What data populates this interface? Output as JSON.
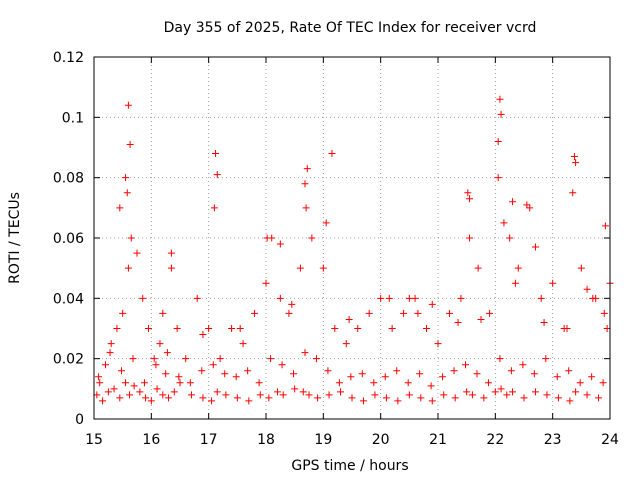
{
  "chart_data": {
    "type": "scatter",
    "title": "Day 355 of 2025, Rate Of TEC Index for receiver vcrd",
    "xlabel": "GPS time / hours",
    "ylabel": "ROTI / TECUs",
    "xlim": [
      15,
      24
    ],
    "ylim": [
      0,
      0.12
    ],
    "xticks": [
      "15",
      "16",
      "17",
      "18",
      "19",
      "20",
      "21",
      "22",
      "23",
      "24"
    ],
    "yticks": [
      "0",
      "0.02",
      "0.04",
      "0.06",
      "0.08",
      "0.1",
      "0.12"
    ],
    "grid": true,
    "marker": "plus",
    "color": "#ff0000",
    "series": [
      {
        "x": [
          15.05,
          15.1,
          15.15,
          15.2,
          15.25,
          15.3,
          15.35,
          15.4,
          15.45,
          15.5,
          15.55,
          15.6,
          15.62,
          15.65,
          15.7,
          15.75,
          15.8,
          15.85,
          15.9,
          15.95,
          16.0,
          16.05,
          16.1,
          16.15,
          16.2,
          16.25,
          16.3,
          16.35,
          16.4,
          16.45,
          16.5,
          16.6,
          16.7,
          16.8,
          16.9,
          17.0,
          17.05,
          17.1,
          17.15,
          17.2,
          17.3,
          17.4,
          17.5,
          17.6,
          17.7,
          17.8,
          17.9,
          18.0,
          18.05,
          18.1,
          18.2,
          18.25,
          18.3,
          18.4,
          18.5,
          18.6,
          18.65,
          18.7,
          18.75,
          18.8,
          18.9,
          19.0,
          19.1,
          19.2,
          19.3,
          19.4,
          19.5,
          19.6,
          19.7,
          19.8,
          19.9,
          20.0,
          20.1,
          20.2,
          20.3,
          20.4,
          20.5,
          20.6,
          20.7,
          20.8,
          20.9,
          21.0,
          21.1,
          21.2,
          21.3,
          21.4,
          21.5,
          21.55,
          21.6,
          21.7,
          21.8,
          21.9,
          22.0,
          22.05,
          22.1,
          22.15,
          22.2,
          22.25,
          22.3,
          22.4,
          22.5,
          22.6,
          22.7,
          22.8,
          22.9,
          23.0,
          23.1,
          23.2,
          23.3,
          23.35,
          23.4,
          23.5,
          23.6,
          23.7,
          23.8,
          23.9,
          23.95,
          24.0,
          15.08,
          15.28,
          15.48,
          15.68,
          15.88,
          16.08,
          16.28,
          16.48,
          16.68,
          16.88,
          17.08,
          17.28,
          17.48,
          17.68,
          17.88,
          18.08,
          18.28,
          18.48,
          18.68,
          18.88,
          19.08,
          19.28,
          19.48,
          19.68,
          19.88,
          20.08,
          20.28,
          20.48,
          20.68,
          20.88,
          21.08,
          21.28,
          21.48,
          21.68,
          21.88,
          22.08,
          22.28,
          22.48,
          22.68,
          22.88,
          23.08,
          23.28,
          23.48,
          23.68,
          23.88,
          15.6,
          15.63,
          15.58,
          17.12,
          17.15,
          18.72,
          18.68,
          19.15,
          22.08,
          22.1,
          22.05,
          22.3,
          22.55,
          23.38,
          23.4,
          21.52,
          21.55,
          16.35,
          18.02,
          18.25,
          19.05,
          20.5,
          20.9,
          22.7,
          23.6,
          23.92,
          15.55,
          15.45,
          16.2,
          16.9,
          17.55,
          18.45,
          19.45,
          20.15,
          20.65,
          21.35,
          21.75,
          22.35,
          22.85,
          23.25,
          23.75
        ],
        "y": [
          0.008,
          0.012,
          0.006,
          0.018,
          0.009,
          0.025,
          0.01,
          0.03,
          0.007,
          0.035,
          0.012,
          0.05,
          0.008,
          0.06,
          0.011,
          0.055,
          0.009,
          0.04,
          0.007,
          0.03,
          0.006,
          0.02,
          0.01,
          0.025,
          0.008,
          0.015,
          0.007,
          0.05,
          0.009,
          0.03,
          0.012,
          0.02,
          0.008,
          0.04,
          0.007,
          0.03,
          0.006,
          0.07,
          0.009,
          0.02,
          0.008,
          0.03,
          0.007,
          0.025,
          0.006,
          0.035,
          0.008,
          0.045,
          0.007,
          0.06,
          0.009,
          0.04,
          0.008,
          0.035,
          0.01,
          0.05,
          0.009,
          0.07,
          0.008,
          0.06,
          0.007,
          0.05,
          0.008,
          0.03,
          0.009,
          0.025,
          0.007,
          0.03,
          0.006,
          0.035,
          0.008,
          0.04,
          0.007,
          0.03,
          0.006,
          0.035,
          0.008,
          0.04,
          0.007,
          0.03,
          0.006,
          0.025,
          0.008,
          0.035,
          0.007,
          0.04,
          0.009,
          0.06,
          0.008,
          0.05,
          0.007,
          0.035,
          0.009,
          0.08,
          0.01,
          0.065,
          0.008,
          0.06,
          0.009,
          0.05,
          0.007,
          0.07,
          0.009,
          0.04,
          0.008,
          0.045,
          0.007,
          0.03,
          0.006,
          0.075,
          0.009,
          0.05,
          0.008,
          0.04,
          0.007,
          0.035,
          0.03,
          0.045,
          0.014,
          0.022,
          0.016,
          0.02,
          0.012,
          0.018,
          0.022,
          0.014,
          0.012,
          0.016,
          0.018,
          0.015,
          0.014,
          0.016,
          0.012,
          0.02,
          0.018,
          0.015,
          0.022,
          0.02,
          0.016,
          0.012,
          0.014,
          0.015,
          0.012,
          0.014,
          0.016,
          0.012,
          0.015,
          0.011,
          0.014,
          0.016,
          0.018,
          0.015,
          0.012,
          0.02,
          0.016,
          0.018,
          0.015,
          0.02,
          0.014,
          0.016,
          0.012,
          0.014,
          0.012,
          0.104,
          0.091,
          0.075,
          0.088,
          0.081,
          0.083,
          0.078,
          0.088,
          0.106,
          0.101,
          0.092,
          0.072,
          0.071,
          0.087,
          0.085,
          0.075,
          0.073,
          0.055,
          0.06,
          0.058,
          0.065,
          0.04,
          0.038,
          0.057,
          0.043,
          0.064,
          0.08,
          0.07,
          0.035,
          0.028,
          0.03,
          0.038,
          0.033,
          0.04,
          0.035,
          0.032,
          0.033,
          0.045,
          0.032,
          0.03,
          0.04
        ]
      }
    ]
  }
}
